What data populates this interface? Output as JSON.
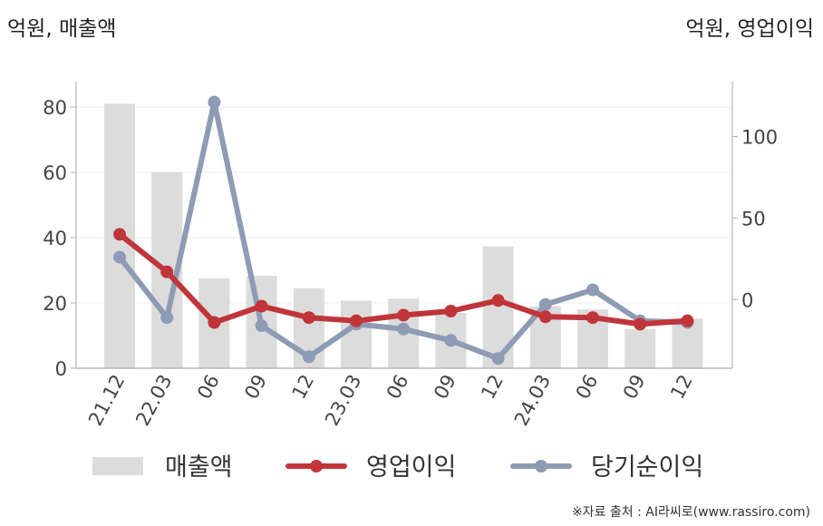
{
  "header": {
    "left_unit": "억원, 매출액",
    "right_unit": "억원, 영업이익"
  },
  "source": "※자료 출처 : AI라씨로(www.rassiro.com)",
  "colors": {
    "bar": "#dcdcdc",
    "operating": "#c0353a",
    "net": "#8e9bb5",
    "axis": "#aaaaaa",
    "grid": "#ebebeb"
  },
  "chart_data": {
    "type": "bar",
    "categories": [
      "21.12",
      "22.03",
      "06",
      "09",
      "12",
      "23.03",
      "06",
      "09",
      "12",
      "24.03",
      "06",
      "09",
      "12"
    ],
    "left_axis": {
      "ylim": [
        0,
        85
      ],
      "ticks": [
        0,
        20,
        40,
        60,
        80
      ]
    },
    "right_axis": {
      "ylim": [
        -42,
        128
      ],
      "ticks": [
        0,
        50,
        100
      ]
    },
    "series": [
      {
        "name": "매출액",
        "type": "bar",
        "axis": "left",
        "values": [
          81,
          60,
          27.5,
          28.3,
          24.5,
          20.7,
          21.3,
          17,
          37.3,
          19,
          18,
          12,
          15.2
        ]
      },
      {
        "name": "영업이익",
        "type": "line",
        "axis": "right",
        "values": [
          40,
          17,
          -14,
          -4,
          -11,
          -13,
          -9.5,
          -7,
          -0.5,
          -10.5,
          -11,
          -15,
          -13
        ]
      },
      {
        "name": "당기순이익",
        "type": "line",
        "axis": "right",
        "values": [
          26,
          -11,
          121,
          -16,
          -35,
          -15,
          -18,
          -25,
          -36,
          -3,
          6,
          -13,
          -14
        ]
      }
    ]
  }
}
